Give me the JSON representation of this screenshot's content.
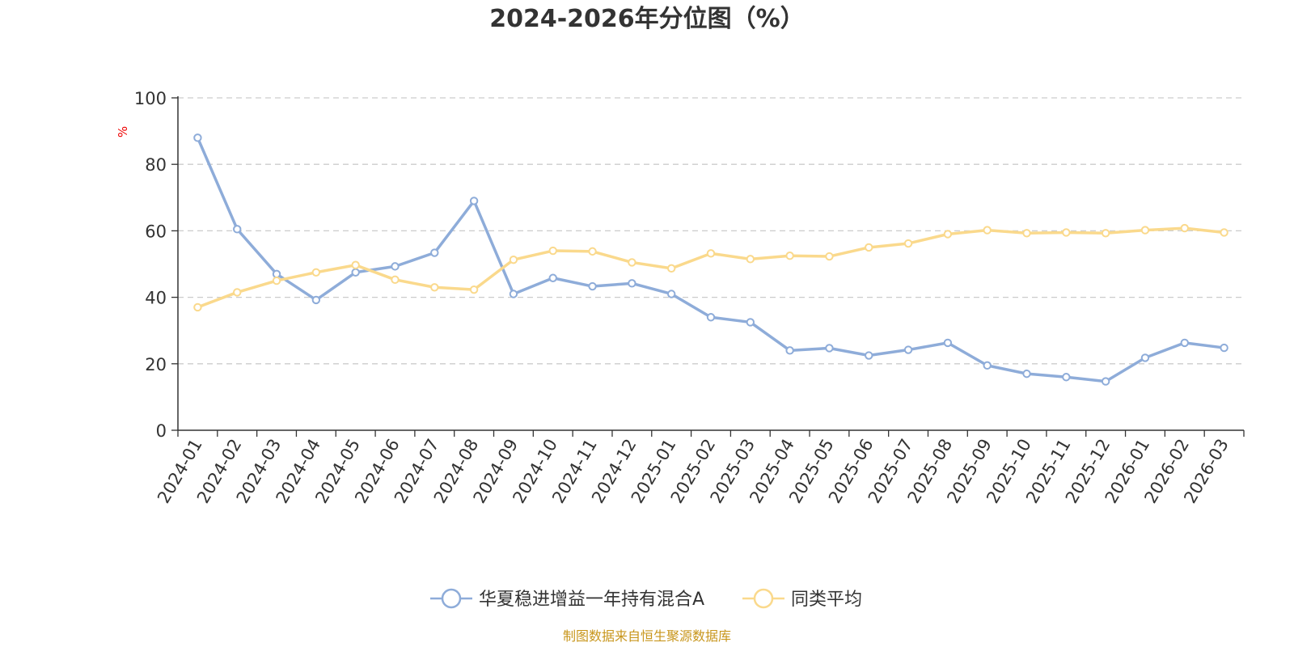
{
  "chart_data": {
    "type": "line",
    "title": "2024-2026年分位图（%）",
    "ylabel": "%",
    "ylim": [
      0,
      100
    ],
    "yticks": [
      0,
      20,
      40,
      60,
      80,
      100
    ],
    "grid": true,
    "legend_position": "bottom",
    "categories": [
      "2024-01",
      "2024-02",
      "2024-03",
      "2024-04",
      "2024-05",
      "2024-06",
      "2024-07",
      "2024-08",
      "2024-09",
      "2024-10",
      "2024-11",
      "2024-12",
      "2025-01",
      "2025-02",
      "2025-03",
      "2025-04",
      "2025-05",
      "2025-06",
      "2025-07",
      "2025-08",
      "2025-09",
      "2025-10",
      "2025-11",
      "2025-12",
      "2026-01",
      "2026-02",
      "2026-03"
    ],
    "series": [
      {
        "name": "华夏稳进增益一年持有混合A",
        "color": "#8eacd9",
        "values": [
          88.0,
          60.5,
          47.0,
          39.2,
          47.5,
          49.3,
          53.4,
          69.0,
          41.0,
          45.8,
          43.3,
          44.2,
          41.0,
          34.0,
          32.5,
          24.0,
          24.7,
          22.5,
          24.2,
          26.3,
          19.5,
          17.0,
          16.0,
          14.7,
          21.8,
          26.3,
          24.8
        ]
      },
      {
        "name": "同类平均",
        "color": "#fad98c",
        "values": [
          37.0,
          41.5,
          45.0,
          47.5,
          49.7,
          45.3,
          43.0,
          42.3,
          51.3,
          54.0,
          53.8,
          50.5,
          48.7,
          53.2,
          51.5,
          52.5,
          52.3,
          55.0,
          56.2,
          59.0,
          60.2,
          59.3,
          59.5,
          59.3,
          60.2,
          60.8,
          59.5
        ]
      }
    ]
  },
  "footer": {
    "source": "制图数据来自恒生聚源数据库"
  }
}
